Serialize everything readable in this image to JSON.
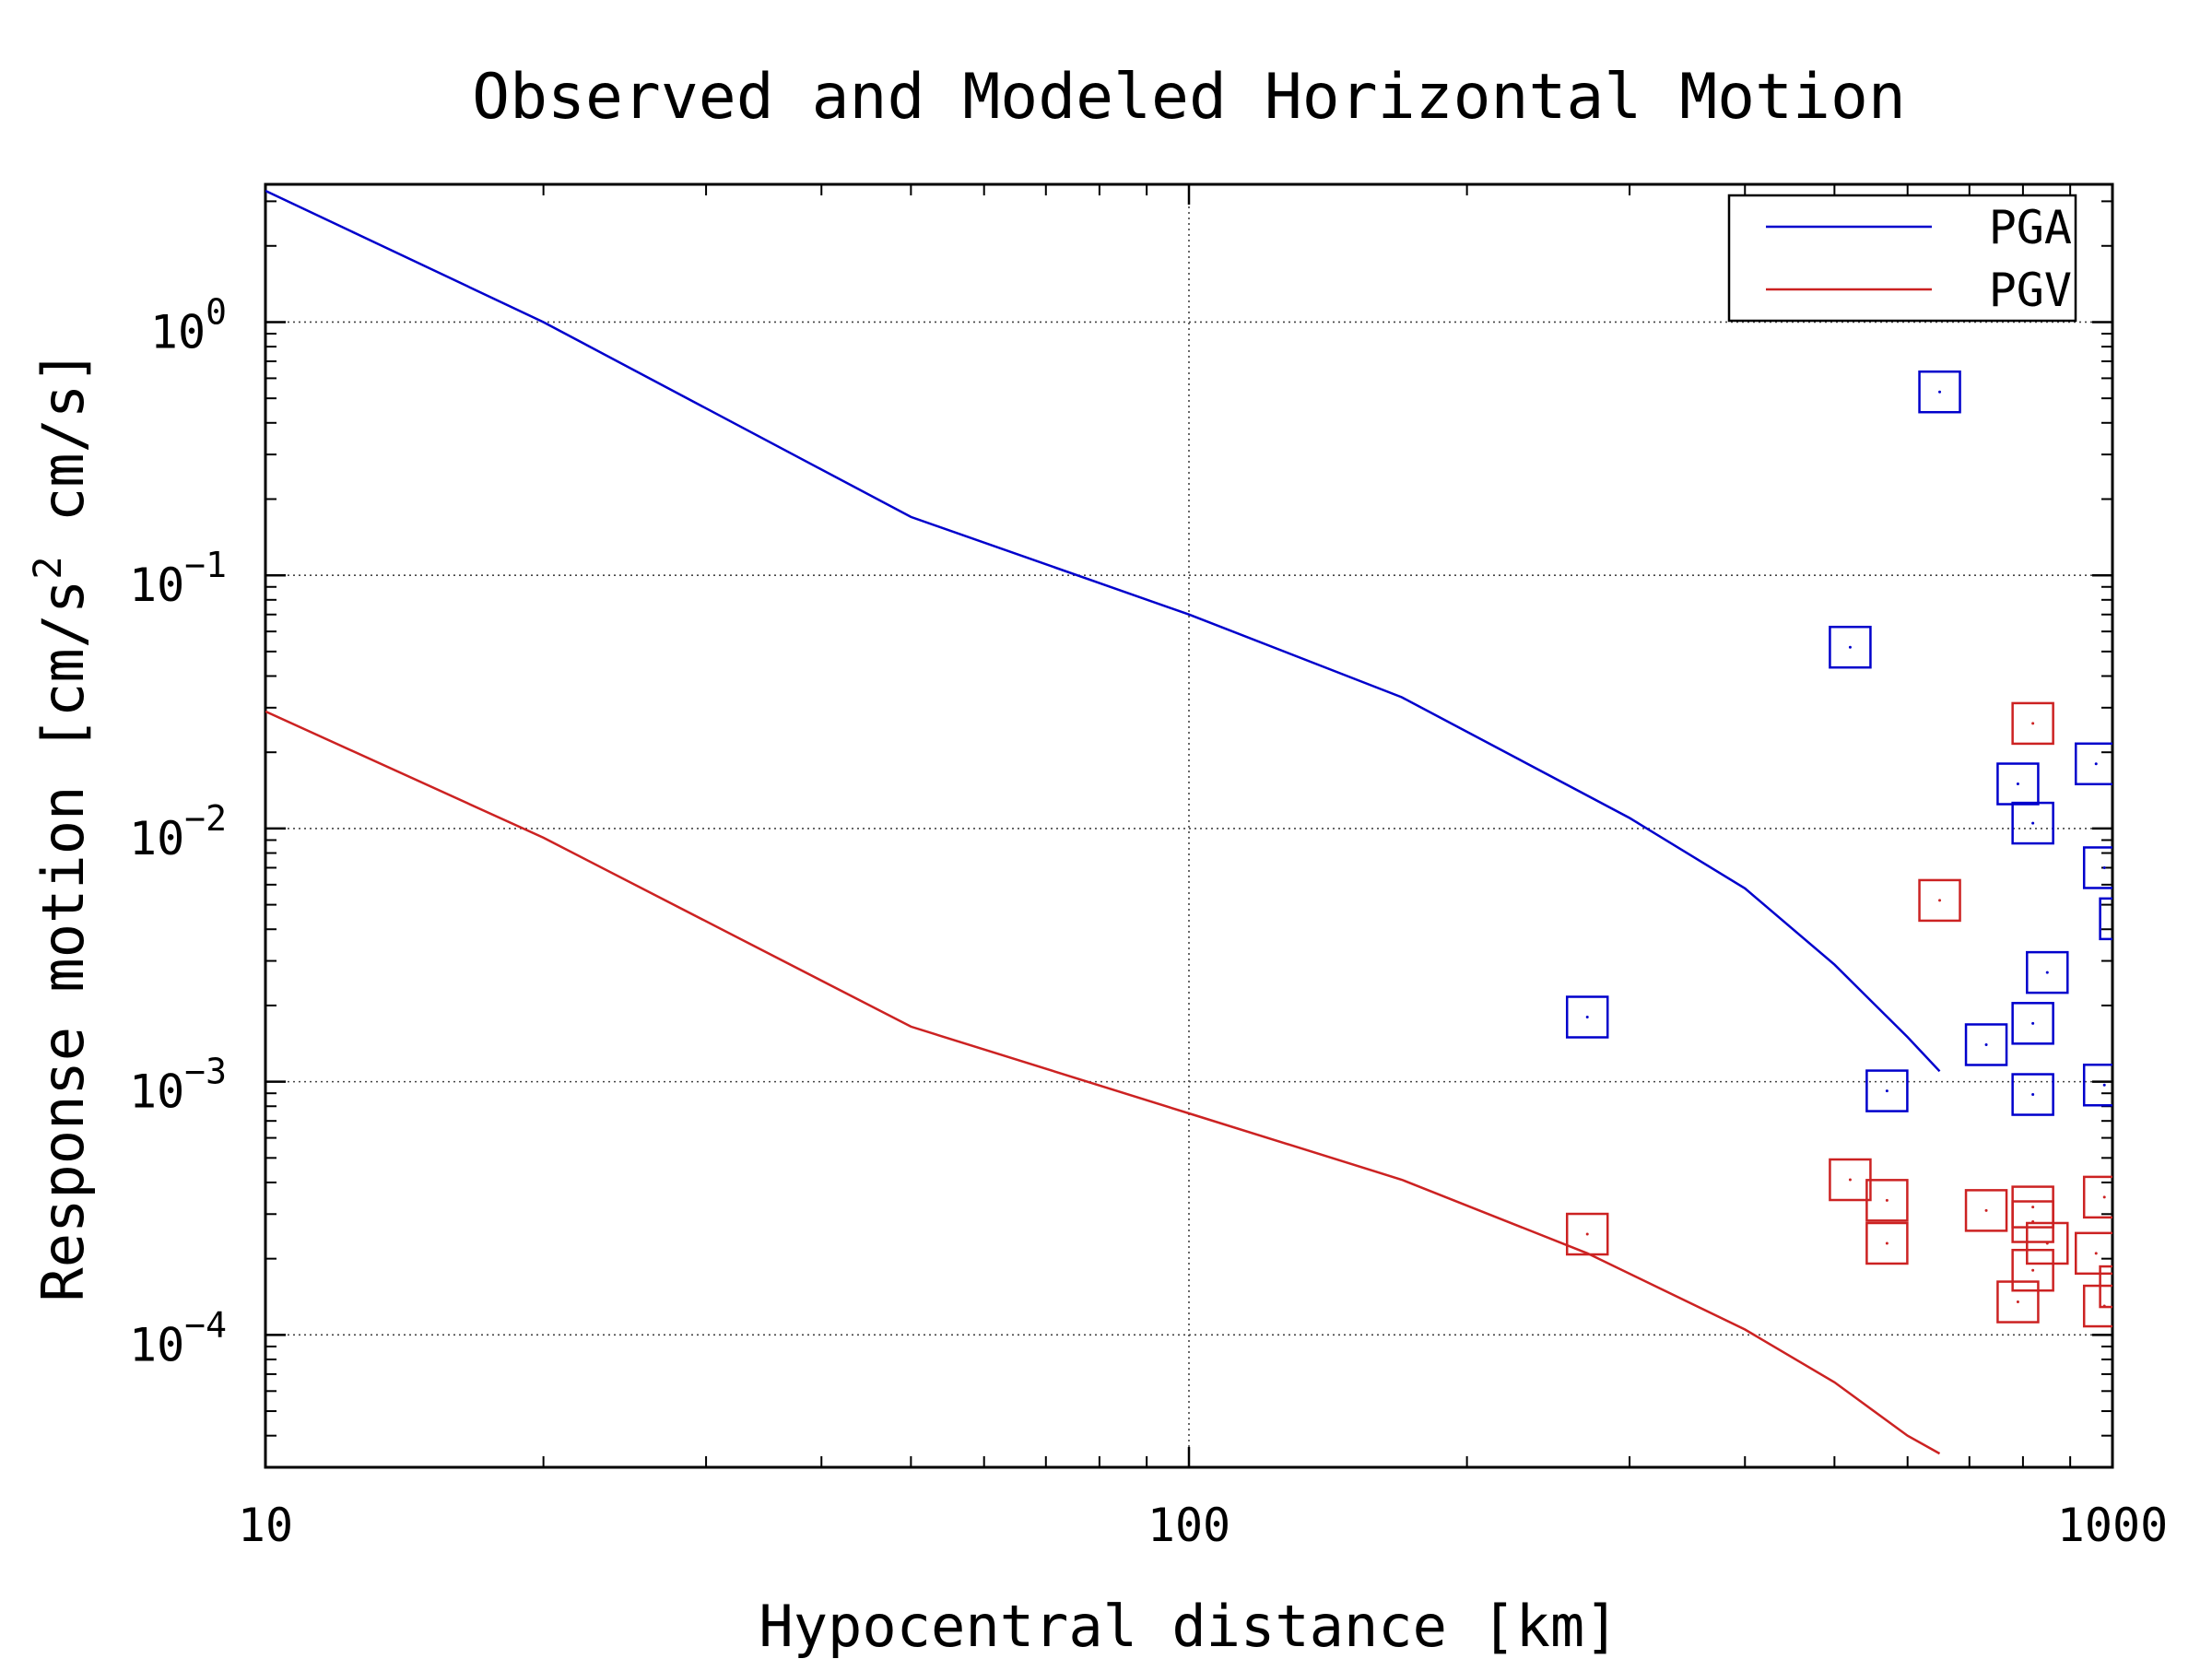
{
  "chart_data": {
    "type": "scatter",
    "title": "Observed and Modeled Horizontal Motion",
    "xlabel": "Hypocentral distance [km]",
    "ylabel": {
      "part1": "Response motion  [cm/s",
      "sup": "2",
      "part2": "  cm/s]"
    },
    "x_scale": "log",
    "y_scale": "log",
    "xlim": [
      10,
      1000
    ],
    "ylim": [
      3e-05,
      3.5
    ],
    "x_ticks": [
      {
        "value": 10,
        "label": "10"
      },
      {
        "value": 100,
        "label": "100"
      },
      {
        "value": 1000,
        "label": "1000"
      }
    ],
    "y_ticks": [
      {
        "value": 1,
        "base": "10",
        "exp": "0"
      },
      {
        "value": 0.1,
        "base": "10",
        "exp": "−1"
      },
      {
        "value": 0.01,
        "base": "10",
        "exp": "−2"
      },
      {
        "value": 0.001,
        "base": "10",
        "exp": "−3"
      },
      {
        "value": 0.0001,
        "base": "10",
        "exp": "−4"
      }
    ],
    "grid": true,
    "legend_position": "top-right",
    "series": [
      {
        "name": "PGA",
        "color": "#0000cc",
        "model_line": [
          [
            10,
            3.3
          ],
          [
            20,
            1.0
          ],
          [
            50,
            0.17
          ],
          [
            100,
            0.07
          ],
          [
            170,
            0.033
          ],
          [
            300,
            0.011
          ],
          [
            400,
            0.0058
          ],
          [
            500,
            0.0029
          ],
          [
            600,
            0.0015
          ],
          [
            650,
            0.0011
          ]
        ],
        "observed": [
          [
            270,
            0.0018
          ],
          [
            520,
            0.052
          ],
          [
            570,
            0.00092
          ],
          [
            650,
            0.53
          ],
          [
            730,
            0.0014
          ],
          [
            790,
            0.015
          ],
          [
            820,
            0.0105
          ],
          [
            820,
            0.0017
          ],
          [
            820,
            0.00089
          ],
          [
            850,
            0.0027
          ],
          [
            960,
            0.018
          ],
          [
            980,
            0.007
          ],
          [
            980,
            0.00097
          ],
          [
            1020,
            0.0044
          ]
        ]
      },
      {
        "name": "PGV",
        "color": "#cc2222",
        "model_line": [
          [
            10,
            0.029
          ],
          [
            20,
            0.0092
          ],
          [
            50,
            0.00165
          ],
          [
            100,
            0.00075
          ],
          [
            170,
            0.00041
          ],
          [
            270,
            0.00021
          ],
          [
            400,
            0.000105
          ],
          [
            500,
            6.5e-05
          ],
          [
            600,
            4e-05
          ],
          [
            650,
            3.4e-05
          ]
        ],
        "observed": [
          [
            270,
            0.00025
          ],
          [
            520,
            0.00041
          ],
          [
            570,
            0.00034
          ],
          [
            570,
            0.00023
          ],
          [
            650,
            0.0052
          ],
          [
            730,
            0.00031
          ],
          [
            790,
            0.000135
          ],
          [
            820,
            0.026
          ],
          [
            820,
            0.00032
          ],
          [
            820,
            0.00028
          ],
          [
            820,
            0.00018
          ],
          [
            850,
            0.00023
          ],
          [
            960,
            0.00021
          ],
          [
            980,
            0.00035
          ],
          [
            980,
            0.00013
          ],
          [
            1020,
            0.000155
          ]
        ]
      }
    ]
  }
}
